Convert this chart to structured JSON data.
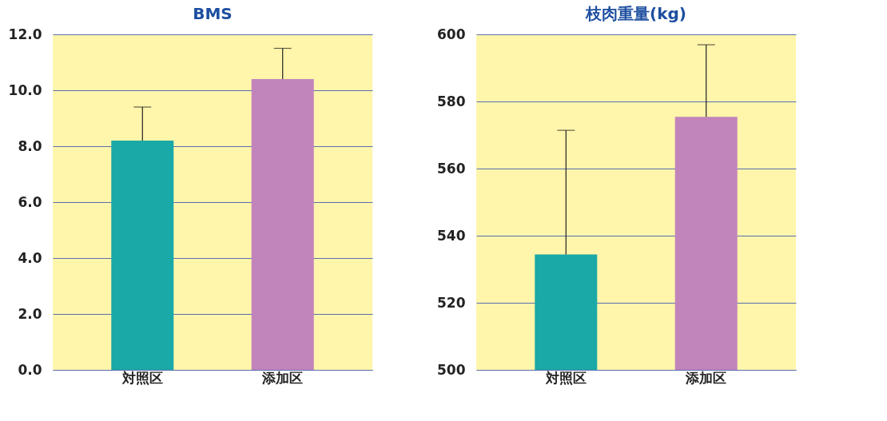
{
  "chart_data": [
    {
      "type": "bar",
      "title": "BMS",
      "categories": [
        "対照区",
        "添加区"
      ],
      "values": [
        8.2,
        10.4
      ],
      "errors": [
        1.2,
        1.1
      ],
      "colors": [
        "#1aa9a6",
        "#c184bb"
      ],
      "ylim": [
        0,
        12
      ],
      "yticks": [
        {
          "value": 0,
          "label": "0.0"
        },
        {
          "value": 2,
          "label": "2.0"
        },
        {
          "value": 4,
          "label": "4.0"
        },
        {
          "value": 6,
          "label": "6.0"
        },
        {
          "value": 8,
          "label": "8.0"
        },
        {
          "value": 10,
          "label": "10.0"
        },
        {
          "value": 12,
          "label": "12.0"
        }
      ],
      "grid": "y"
    },
    {
      "type": "bar",
      "title": "枝肉重量(kg)",
      "categories": [
        "対照区",
        "添加区"
      ],
      "values": [
        534.4,
        575.4
      ],
      "errors": [
        37,
        21.5
      ],
      "colors": [
        "#1aa9a6",
        "#c184bb"
      ],
      "ylim": [
        500,
        600
      ],
      "yticks": [
        500,
        520,
        540,
        560,
        580,
        600
      ],
      "grid": "y"
    }
  ]
}
